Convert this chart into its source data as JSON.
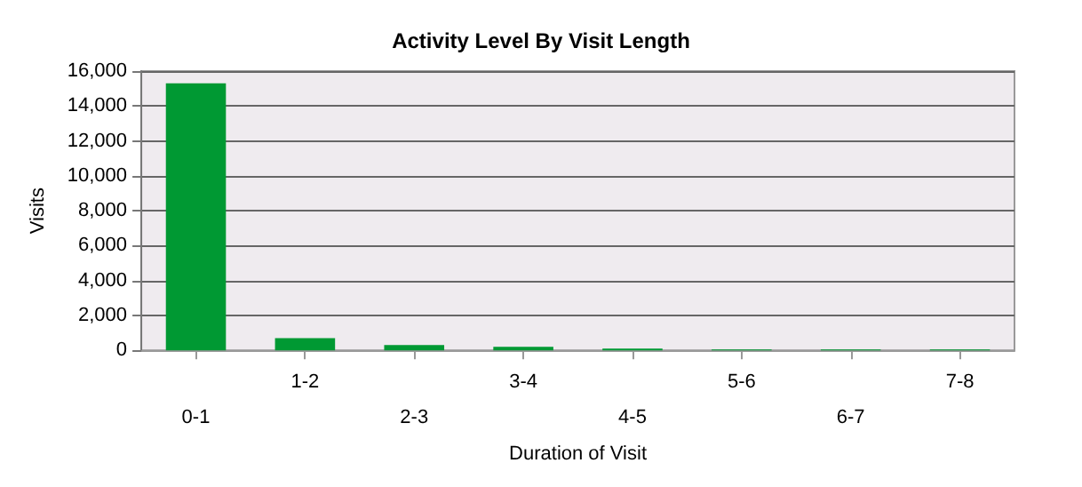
{
  "chart_data": {
    "type": "bar",
    "title": "Activity Level By Visit Length",
    "xlabel": "Duration of Visit",
    "ylabel": "Visits",
    "categories": [
      "0-1",
      "1-2",
      "2-3",
      "3-4",
      "4-5",
      "5-6",
      "6-7",
      "7-8"
    ],
    "values": [
      15300,
      700,
      300,
      200,
      100,
      50,
      50,
      50
    ],
    "color": "#009933",
    "ylim": [
      0,
      16000
    ],
    "yticks": [
      0,
      {
        "value": 2000,
        "label": "2,000"
      },
      {
        "value": 4000,
        "label": "4,000"
      },
      {
        "value": 6000,
        "label": "6,000"
      },
      {
        "value": 8000,
        "label": "8,000"
      },
      {
        "value": 10000,
        "label": "10,000"
      },
      {
        "value": 12000,
        "label": "12,000"
      },
      {
        "value": 14000,
        "label": "14,000"
      },
      {
        "value": 16000,
        "label": "16,000"
      }
    ],
    "grid": "y"
  }
}
